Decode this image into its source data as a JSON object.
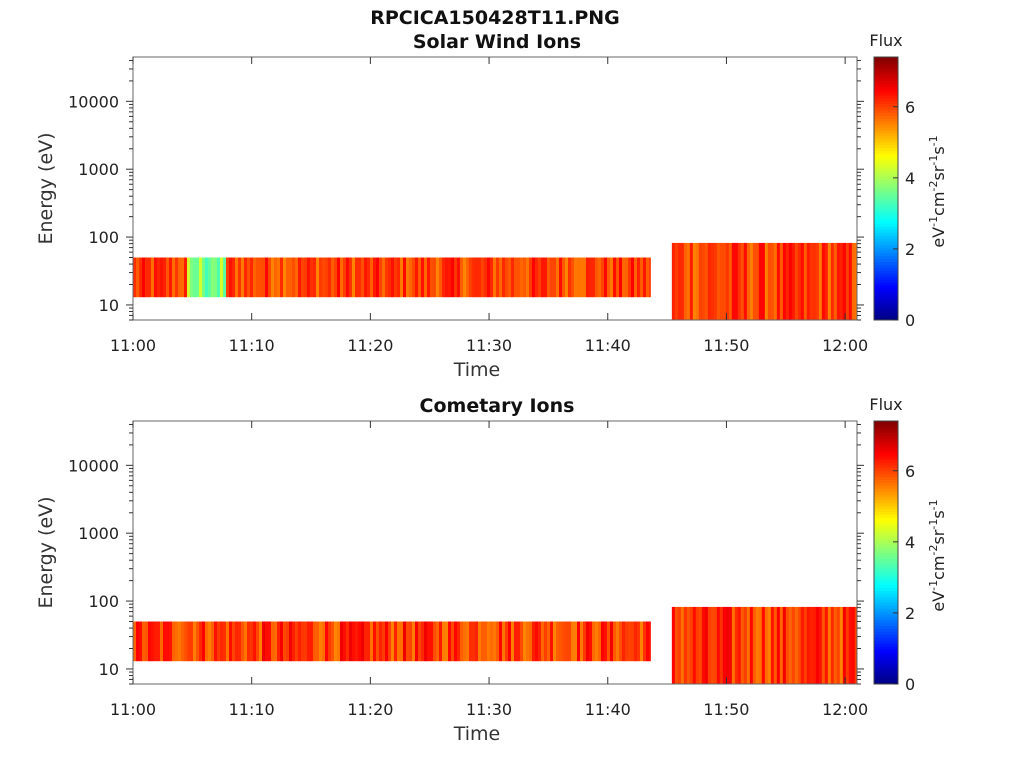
{
  "figure_title": "RPCICA150428T11.PNG",
  "chart_data": [
    {
      "type": "heatmap",
      "title": "Solar Wind Ions",
      "xlabel": "Time",
      "ylabel": "Energy (eV)",
      "yscale": "log",
      "ylim": [
        6,
        45000
      ],
      "xlim": [
        "11:00",
        "12:01"
      ],
      "x_ticks": [
        "11:00",
        "11:10",
        "11:20",
        "11:30",
        "11:40",
        "11:50",
        "12:00"
      ],
      "y_ticks": [
        "10",
        "100",
        "1000",
        "10000"
      ],
      "colorbar": {
        "label": "Flux",
        "unit": "eV-1cm-2sr-1s-1",
        "range": [
          0,
          7.4
        ],
        "ticks": [
          "0",
          "2",
          "4",
          "6"
        ],
        "colormap": "jet"
      },
      "segments": [
        {
          "start": "11:00",
          "end": "11:43.6",
          "energy_range": [
            13,
            50
          ]
        },
        {
          "start": "11:45.4",
          "end": "12:01",
          "energy_range": [
            6,
            82
          ]
        }
      ],
      "features": [
        {
          "start": "11:04.3",
          "end": "11:07.6",
          "flux_range": [
            3,
            4.5
          ]
        }
      ],
      "typical_flux": [
        5.5,
        6.5
      ],
      "grid": false
    },
    {
      "type": "heatmap",
      "title": "Cometary Ions",
      "xlabel": "Time",
      "ylabel": "Energy (eV)",
      "yscale": "log",
      "ylim": [
        6,
        45000
      ],
      "xlim": [
        "11:00",
        "12:01"
      ],
      "x_ticks": [
        "11:00",
        "11:10",
        "11:20",
        "11:30",
        "11:40",
        "11:50",
        "12:00"
      ],
      "y_ticks": [
        "10",
        "100",
        "1000",
        "10000"
      ],
      "colorbar": {
        "label": "Flux",
        "unit": "eV-1cm-2sr-1s-1",
        "range": [
          0,
          7.4
        ],
        "ticks": [
          "0",
          "2",
          "4",
          "6"
        ],
        "colormap": "jet"
      },
      "segments": [
        {
          "start": "11:00",
          "end": "11:43.6",
          "energy_range": [
            13,
            50
          ]
        },
        {
          "start": "11:45.4",
          "end": "12:01",
          "energy_range": [
            6,
            82
          ]
        }
      ],
      "features": [],
      "typical_flux": [
        5.5,
        6.6
      ],
      "grid": false
    }
  ]
}
